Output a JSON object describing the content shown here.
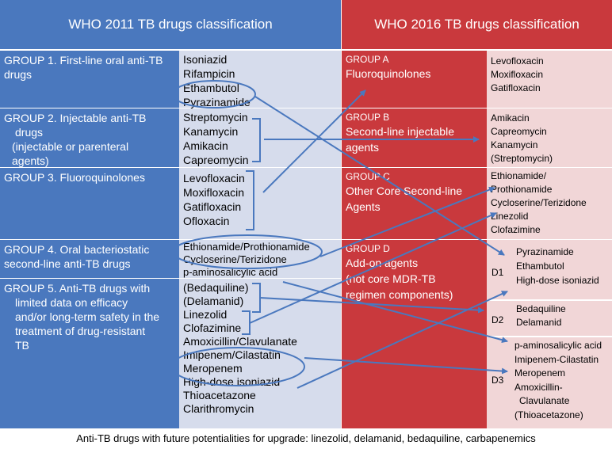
{
  "headers": {
    "left": "WHO 2011 TB drugs classification",
    "right": "WHO 2016 TB drugs classification"
  },
  "who2011": {
    "group1": {
      "title_lines": [
        "GROUP 1. First-line oral anti-TB",
        "drugs"
      ],
      "drugs": [
        "Isoniazid",
        "Rifampicin",
        "Ethambutol",
        "Pyrazinamide"
      ]
    },
    "group2": {
      "title_lines": [
        "GROUP 2. Injectable anti-TB",
        "drugs",
        "(injectable or parenteral",
        "agents)"
      ],
      "drugs": [
        "Streptomycin",
        "Kanamycin",
        "Amikacin",
        "Capreomycin"
      ]
    },
    "group3": {
      "title_lines": [
        "GROUP 3. Fluoroquinolones"
      ],
      "drugs": [
        "Levofloxacin",
        "Moxifloxacin",
        "Gatifloxacin",
        "Ofloxacin"
      ]
    },
    "group4": {
      "title_lines": [
        "GROUP 4. Oral bacteriostatic",
        "second-line anti-TB drugs"
      ],
      "drugs": [
        "Ethionamide/Prothionamide",
        "Cycloserine/Terizidone",
        "p-aminosalicylic acid"
      ]
    },
    "group5": {
      "title_lines": [
        "GROUP 5. Anti-TB drugs with",
        "limited data on efficacy",
        "and/or long-term safety in the",
        "treatment of drug-resistant",
        "TB"
      ],
      "drugs": [
        "(Bedaquiline)",
        "(Delamanid)",
        "Linezolid",
        "Clofazimine",
        "Amoxicillin/Clavulanate",
        "Imipenem/Cilastatin",
        "Meropenem",
        "High-dose isoniazid",
        "Thioacetazone",
        "Clarithromycin"
      ]
    }
  },
  "who2016": {
    "groupA": {
      "label": "GROUP  A",
      "name_lines": [
        "Fluoroquinolones"
      ],
      "drugs": [
        "Levofloxacin",
        "Moxifloxacin",
        "Gatifloxacin"
      ]
    },
    "groupB": {
      "label": "GROUP  B",
      "name_lines": [
        "Second-line injectable",
        "agents"
      ],
      "drugs": [
        "Amikacin",
        "Capreomycin",
        "Kanamycin",
        "(Streptomycin)"
      ]
    },
    "groupC": {
      "label": "GROUP  C",
      "name_lines": [
        "Other Core Second-line",
        "Agents"
      ],
      "drugs": [
        "Ethionamide/",
        "Prothionamide",
        "Cycloserine/Terizidone",
        "Linezolid",
        "Clofazimine"
      ]
    },
    "groupD": {
      "label": "GROUP  D",
      "name_lines": [
        "Add-on agents",
        "(not core MDR-TB",
        "regimen components)"
      ],
      "d1": {
        "label": "D1",
        "drugs": [
          "Pyrazinamide",
          "Ethambutol",
          "High-dose isoniazid"
        ]
      },
      "d2": {
        "label": "D2",
        "drugs": [
          "Bedaquiline",
          "Delamanid"
        ]
      },
      "d3": {
        "label": "D3",
        "drugs": [
          "p-aminosalicylic acid",
          "Imipenem-Cilastatin",
          "Meropenem",
          "Amoxicillin-",
          "Clavulanate",
          "(Thioacetazone)"
        ]
      }
    }
  },
  "caption": "Anti-TB drugs with future potentialities for upgrade: linezolid, delamanid, bedaquiline, carbapenemics",
  "colors": {
    "blue_header": "#4a78be",
    "blue_light": "#d6dcec",
    "red": "#c9393d",
    "pink_light": "#f1d6d7",
    "arrow": "#4a78be"
  }
}
